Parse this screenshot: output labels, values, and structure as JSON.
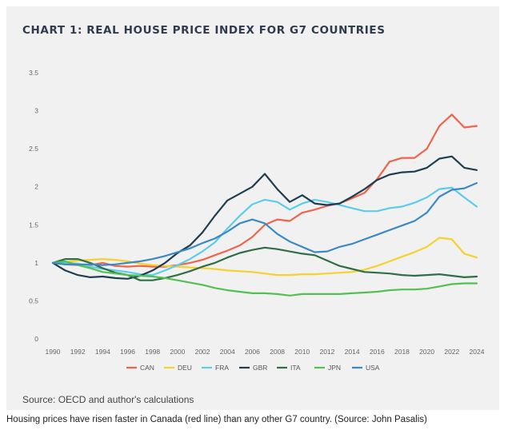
{
  "chart_data": {
    "type": "line",
    "title": "CHART 1: REAL HOUSE PRICE INDEX FOR G7 COUNTRIES",
    "xlabel": "",
    "ylabel": "",
    "xlim": [
      1990,
      2024
    ],
    "ylim": [
      0,
      3.5
    ],
    "x_ticks": [
      "1990",
      "1992",
      "1994",
      "1996",
      "1998",
      "2000",
      "2002",
      "2004",
      "2006",
      "2008",
      "2010",
      "2012",
      "2014",
      "2016",
      "2018",
      "2020",
      "2022",
      "2024"
    ],
    "y_ticks": [
      "0",
      "0.5",
      "1",
      "1.5",
      "2",
      "2.5",
      "3",
      "3.5"
    ],
    "grid": false,
    "legend_position": "bottom",
    "x": [
      1990,
      1991,
      1992,
      1993,
      1994,
      1995,
      1996,
      1997,
      1998,
      1999,
      2000,
      2001,
      2002,
      2003,
      2004,
      2005,
      2006,
      2007,
      2008,
      2009,
      2010,
      2011,
      2012,
      2013,
      2014,
      2015,
      2016,
      2017,
      2018,
      2019,
      2020,
      2021,
      2022,
      2023,
      2024
    ],
    "series": [
      {
        "name": "CAN",
        "color": "#f0644c",
        "values": [
          1.0,
          0.98,
          0.97,
          0.97,
          1.0,
          0.96,
          0.95,
          0.96,
          0.95,
          0.95,
          0.97,
          1.0,
          1.04,
          1.1,
          1.16,
          1.23,
          1.34,
          1.5,
          1.57,
          1.55,
          1.66,
          1.7,
          1.75,
          1.78,
          1.85,
          1.92,
          2.1,
          2.33,
          2.38,
          2.38,
          2.5,
          2.8,
          2.95,
          2.78,
          2.8
        ]
      },
      {
        "name": "DEU",
        "color": "#f5d22d",
        "values": [
          1.0,
          1.01,
          1.03,
          1.04,
          1.05,
          1.04,
          1.02,
          0.99,
          0.97,
          0.96,
          0.95,
          0.94,
          0.93,
          0.92,
          0.9,
          0.89,
          0.88,
          0.86,
          0.84,
          0.84,
          0.85,
          0.85,
          0.86,
          0.87,
          0.88,
          0.91,
          0.96,
          1.02,
          1.08,
          1.14,
          1.21,
          1.33,
          1.31,
          1.12,
          1.07
        ]
      },
      {
        "name": "FRA",
        "color": "#5bcdea",
        "values": [
          1.0,
          1.0,
          0.99,
          0.95,
          0.92,
          0.9,
          0.88,
          0.85,
          0.84,
          0.9,
          0.97,
          1.05,
          1.15,
          1.27,
          1.45,
          1.62,
          1.77,
          1.83,
          1.8,
          1.7,
          1.78,
          1.83,
          1.8,
          1.76,
          1.72,
          1.68,
          1.68,
          1.72,
          1.74,
          1.79,
          1.86,
          1.97,
          1.99,
          1.86,
          1.74
        ]
      },
      {
        "name": "GBR",
        "color": "#1f3e52",
        "values": [
          1.0,
          0.9,
          0.84,
          0.81,
          0.82,
          0.8,
          0.79,
          0.83,
          0.9,
          1.0,
          1.13,
          1.23,
          1.4,
          1.62,
          1.82,
          1.91,
          2.0,
          2.17,
          1.97,
          1.8,
          1.89,
          1.78,
          1.76,
          1.78,
          1.87,
          1.97,
          2.09,
          2.16,
          2.19,
          2.2,
          2.25,
          2.37,
          2.4,
          2.25,
          2.22
        ]
      },
      {
        "name": "ITA",
        "color": "#2f6e47",
        "values": [
          1.0,
          1.05,
          1.05,
          1.0,
          0.93,
          0.87,
          0.84,
          0.77,
          0.77,
          0.8,
          0.84,
          0.89,
          0.95,
          1.0,
          1.07,
          1.13,
          1.17,
          1.2,
          1.18,
          1.15,
          1.12,
          1.1,
          1.03,
          0.96,
          0.92,
          0.88,
          0.87,
          0.86,
          0.84,
          0.83,
          0.84,
          0.85,
          0.83,
          0.81,
          0.82
        ]
      },
      {
        "name": "JPN",
        "color": "#52c152",
        "values": [
          1.0,
          1.02,
          0.97,
          0.93,
          0.88,
          0.86,
          0.84,
          0.83,
          0.82,
          0.8,
          0.77,
          0.74,
          0.71,
          0.67,
          0.64,
          0.62,
          0.6,
          0.6,
          0.59,
          0.57,
          0.59,
          0.59,
          0.59,
          0.59,
          0.6,
          0.61,
          0.62,
          0.64,
          0.65,
          0.65,
          0.66,
          0.69,
          0.72,
          0.73,
          0.73
        ]
      },
      {
        "name": "USA",
        "color": "#3b8ac4",
        "values": [
          1.0,
          0.98,
          0.98,
          0.98,
          0.97,
          0.98,
          1.0,
          1.02,
          1.05,
          1.09,
          1.14,
          1.19,
          1.26,
          1.32,
          1.41,
          1.52,
          1.57,
          1.52,
          1.38,
          1.28,
          1.21,
          1.14,
          1.15,
          1.21,
          1.25,
          1.31,
          1.37,
          1.43,
          1.49,
          1.55,
          1.66,
          1.87,
          1.96,
          1.98,
          2.05
        ]
      }
    ]
  },
  "source_note": "Source: OECD and author's calculations",
  "caption": "Housing prices have risen faster in Canada (red line) than any other G7 country. (Source: John Pasalis)"
}
